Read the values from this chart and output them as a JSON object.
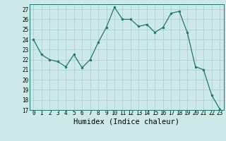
{
  "x": [
    0,
    1,
    2,
    3,
    4,
    5,
    6,
    7,
    8,
    9,
    10,
    11,
    12,
    13,
    14,
    15,
    16,
    17,
    18,
    19,
    20,
    21,
    22,
    23
  ],
  "y": [
    24,
    22.5,
    22,
    21.8,
    21.3,
    22.5,
    21.2,
    22,
    23.7,
    25.2,
    27.2,
    26,
    26,
    25.3,
    25.5,
    24.7,
    25.2,
    26.6,
    26.8,
    24.7,
    21.3,
    21.0,
    18.5,
    17.1
  ],
  "line_color": "#1a7a6a",
  "marker_color": "#1a7a6a",
  "bg_color": "#cce8e8",
  "grid_color": "#aacccc",
  "xlabel": "Humidex (Indice chaleur)",
  "ylim": [
    17,
    27.5
  ],
  "yticks": [
    17,
    18,
    19,
    20,
    21,
    22,
    23,
    24,
    25,
    26,
    27
  ],
  "xticks": [
    0,
    1,
    2,
    3,
    4,
    5,
    6,
    7,
    8,
    9,
    10,
    11,
    12,
    13,
    14,
    15,
    16,
    17,
    18,
    19,
    20,
    21,
    22,
    23
  ],
  "tick_label_fontsize": 5.5,
  "xlabel_fontsize": 7.5
}
